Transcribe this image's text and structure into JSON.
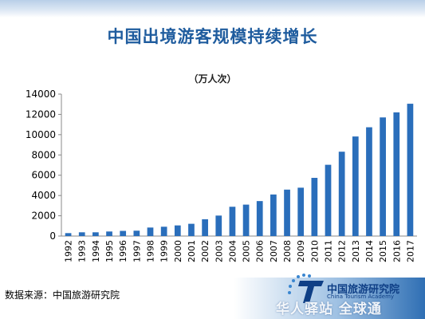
{
  "header": {
    "title": "中国出境游客规模持续增长",
    "unit": "（万人次）"
  },
  "footer": {
    "source": "数据来源：中国旅游研究院",
    "logo_name": "中国旅游研究院",
    "logo_sub": "China Tourism Academy",
    "watermark": "华人驿站 全球通"
  },
  "colors": {
    "bar": "#2a6ebb",
    "title": "#1f5c9e"
  },
  "chart_data": {
    "type": "bar",
    "categories": [
      "1992",
      "1993",
      "1994",
      "1995",
      "1996",
      "1997",
      "1998",
      "1999",
      "2000",
      "2001",
      "2002",
      "2003",
      "2004",
      "2005",
      "2006",
      "2007",
      "2008",
      "2009",
      "2010",
      "2011",
      "2012",
      "2013",
      "2014",
      "2015",
      "2016",
      "2017"
    ],
    "values": [
      290,
      370,
      370,
      450,
      510,
      530,
      840,
      920,
      1050,
      1210,
      1660,
      2020,
      2890,
      3100,
      3450,
      4100,
      4580,
      4770,
      5740,
      7030,
      8320,
      9820,
      10730,
      11700,
      12200,
      13050
    ],
    "title": "中国出境游客规模持续增长",
    "ylabel": "",
    "xlabel": "",
    "ylim": [
      0,
      14000
    ],
    "yticks": [
      0,
      2000,
      4000,
      6000,
      8000,
      10000,
      12000,
      14000
    ],
    "grid": false
  }
}
